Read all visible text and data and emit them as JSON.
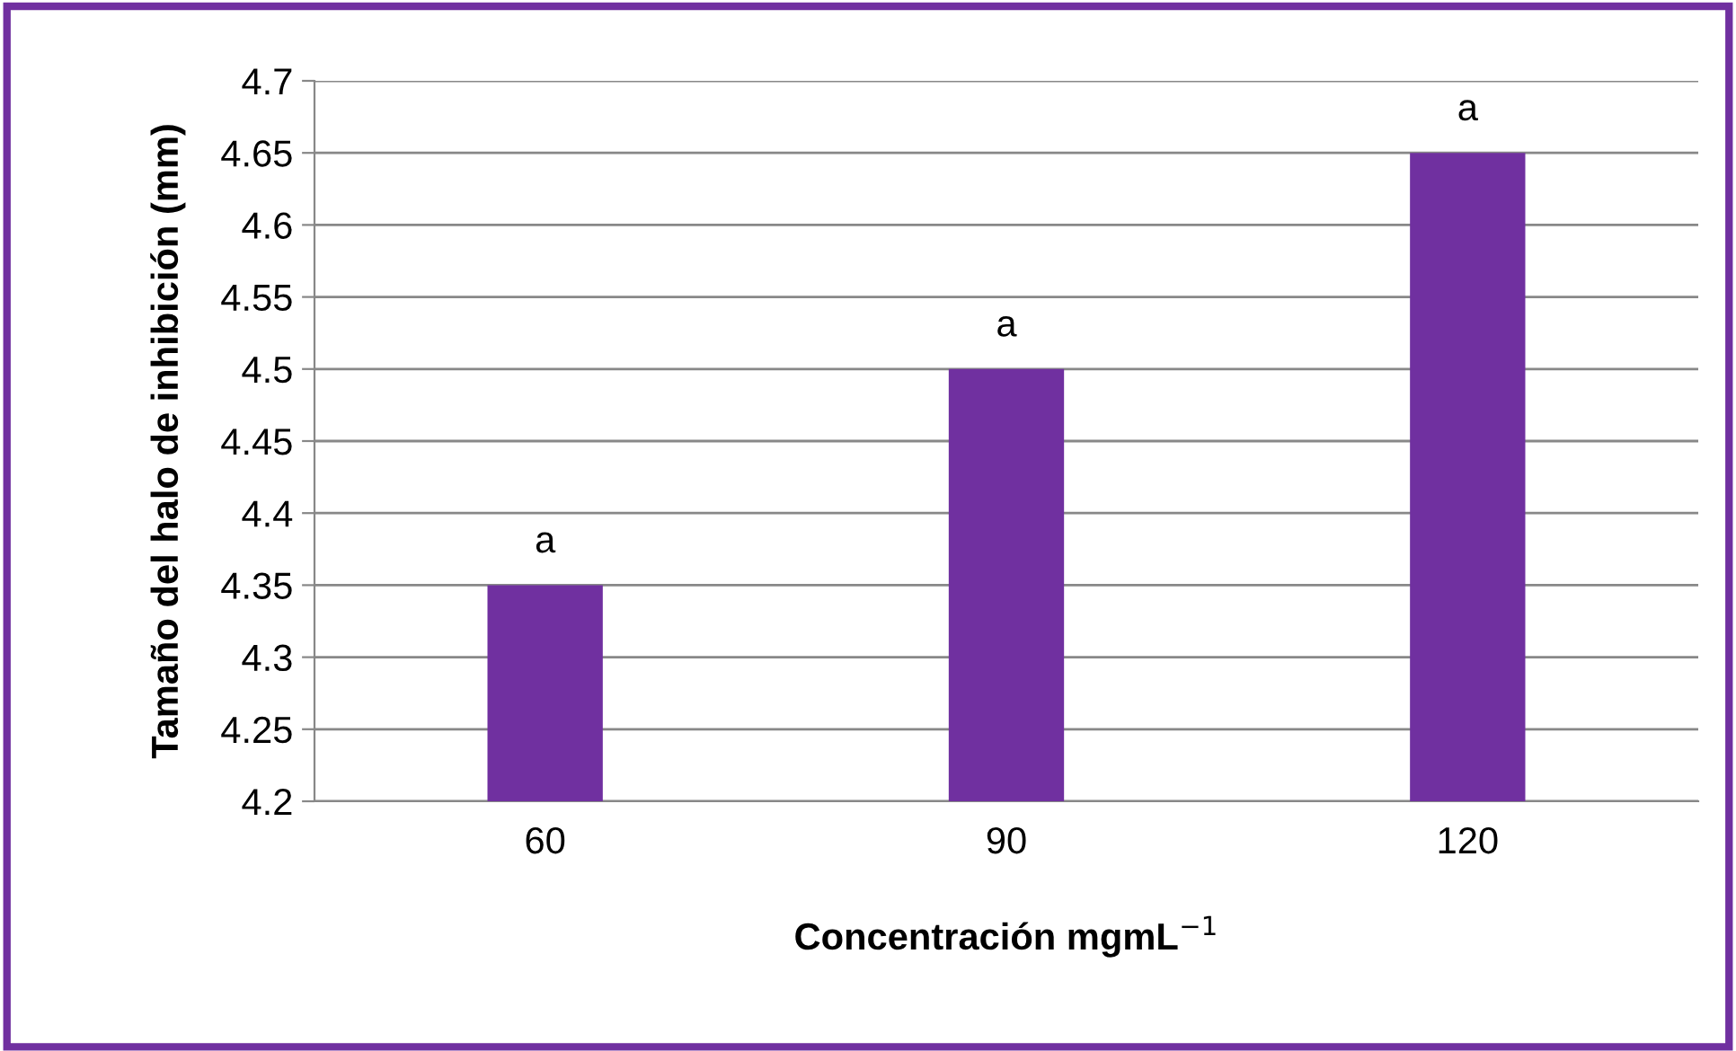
{
  "chart_data": {
    "type": "bar",
    "categories": [
      "60",
      "90",
      "120"
    ],
    "values": [
      4.35,
      4.5,
      4.65
    ],
    "color": "#7030a0",
    "ylim": [
      4.2,
      4.7
    ],
    "yticks": [
      4.2,
      4.25,
      4.3,
      4.35,
      4.4,
      4.45,
      4.5,
      4.55,
      4.6,
      4.65,
      4.7
    ],
    "grid": "y",
    "legend": false,
    "xlabel": "Concentración mgmL$^{−1}$",
    "ylabel": "Tamaño del halo de inhibición (mm)",
    "annotations": [
      {
        "text": "a",
        "x": "60",
        "y": 4.35
      },
      {
        "text": "a",
        "x": "90",
        "y": 4.5
      },
      {
        "text": "a",
        "x": "120",
        "y": 4.65
      }
    ]
  }
}
